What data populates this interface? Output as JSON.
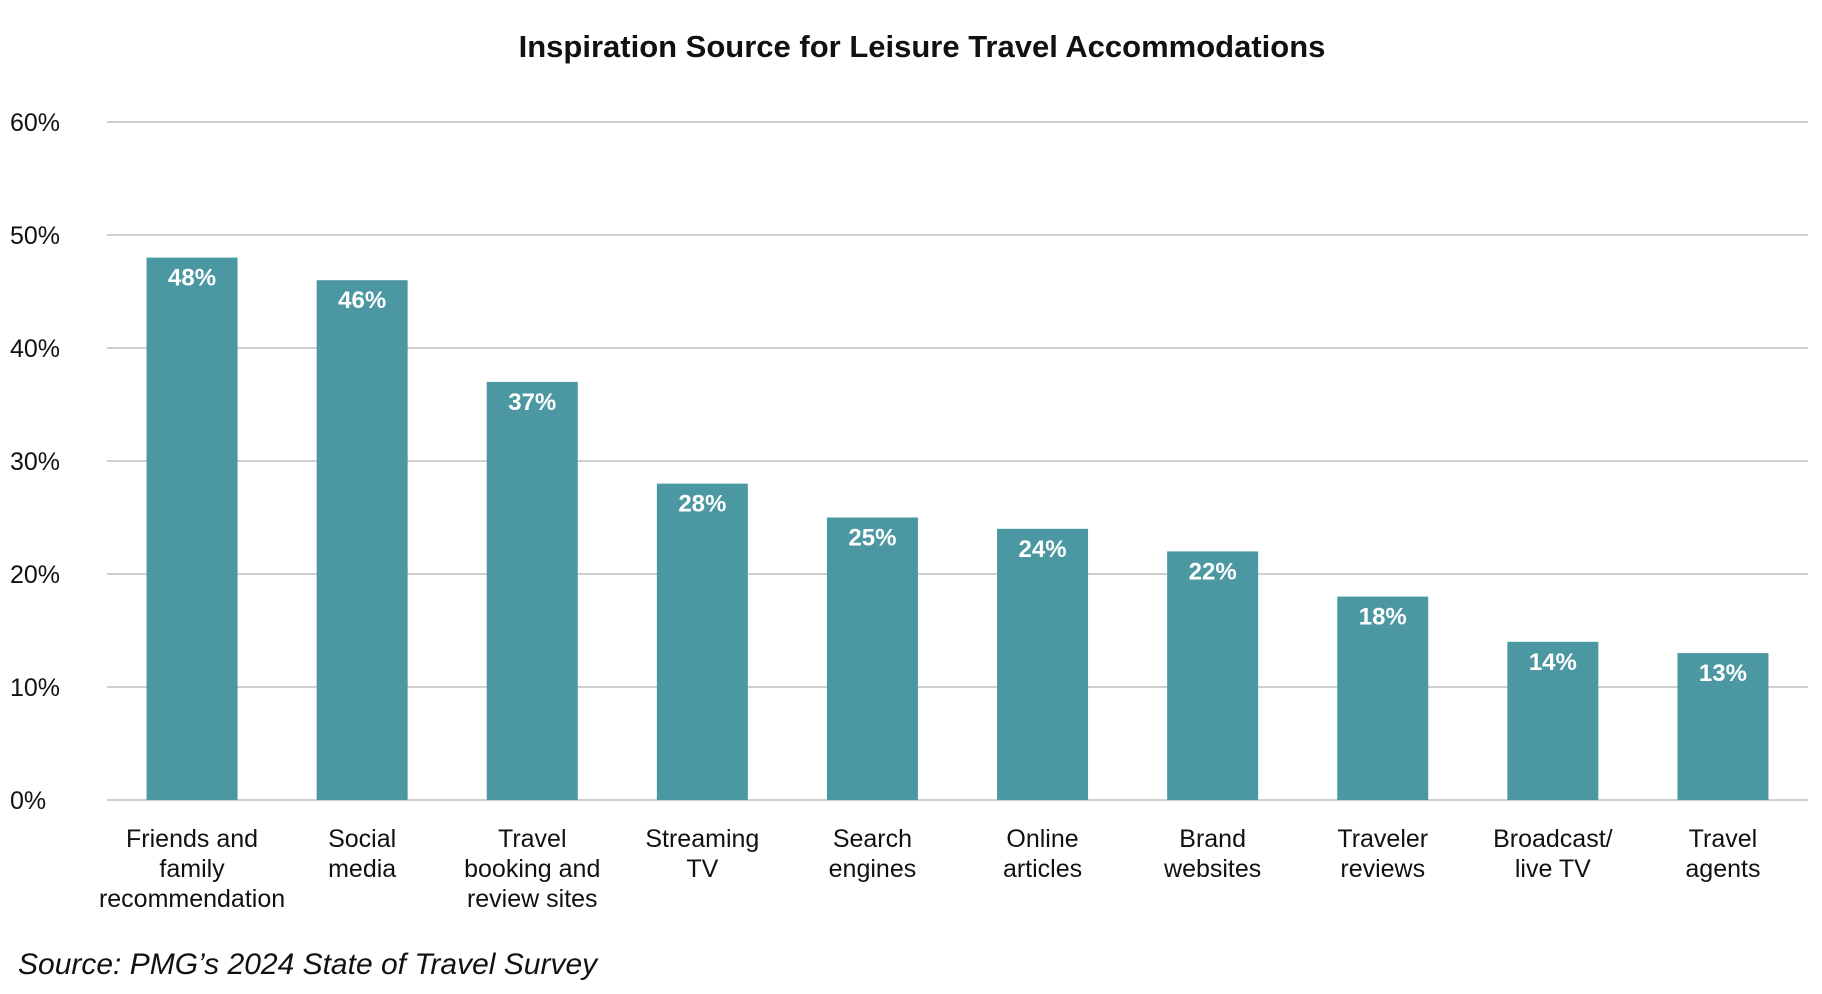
{
  "chart_data": {
    "type": "bar",
    "title": "Inspiration Source for Leisure Travel Accommodations",
    "xlabel": "",
    "ylabel": "",
    "ylim": [
      0,
      60
    ],
    "yticks": [
      "0%",
      "10%",
      "20%",
      "30%",
      "40%",
      "50%",
      "60%"
    ],
    "ytick_values": [
      0,
      10,
      20,
      30,
      40,
      50,
      60
    ],
    "grid": true,
    "categories": [
      [
        "Friends and",
        "family",
        "recommendation"
      ],
      [
        "Social",
        "media"
      ],
      [
        "Travel",
        "booking and",
        "review sites"
      ],
      [
        "Streaming",
        "TV"
      ],
      [
        "Search",
        "engines"
      ],
      [
        "Online",
        "articles"
      ],
      [
        "Brand",
        "websites"
      ],
      [
        "Traveler",
        "reviews"
      ],
      [
        "Broadcast/",
        "live TV"
      ],
      [
        "Travel",
        "agents"
      ]
    ],
    "values": [
      48,
      46,
      37,
      28,
      25,
      24,
      22,
      18,
      14,
      13
    ],
    "data_labels": [
      "48%",
      "46%",
      "37%",
      "28%",
      "25%",
      "24%",
      "22%",
      "18%",
      "14%",
      "13%"
    ],
    "colors": {
      "bar": "#4c98a2",
      "grid": "#bfbfbf",
      "text": "#111111",
      "bar_label": "#ffffff"
    }
  },
  "source_note": "Source: PMG’s 2024 State of Travel Survey"
}
